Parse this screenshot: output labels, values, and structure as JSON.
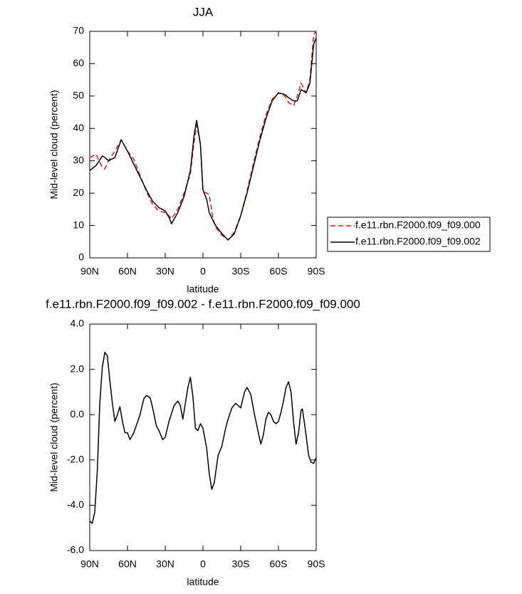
{
  "chart_data": [
    {
      "type": "line",
      "title": "JJA",
      "xlabel": "latitude",
      "ylabel": "Mid-level cloud (percent)",
      "x": [
        90,
        85,
        80,
        78,
        75,
        70,
        65,
        60,
        55,
        50,
        45,
        40,
        35,
        30,
        27,
        25,
        20,
        15,
        10,
        7,
        5,
        2,
        0,
        -3,
        -5,
        -8,
        -10,
        -15,
        -20,
        -25,
        -30,
        -35,
        -40,
        -45,
        -50,
        -55,
        -60,
        -65,
        -68,
        -72,
        -75,
        -78,
        -82,
        -85,
        -88,
        -90
      ],
      "series": [
        {
          "name": "f.e11.rbn.F2000.f09_f09.000",
          "color": "#e8141c",
          "line_style": "dashed",
          "values": [
            31,
            32,
            28,
            27.5,
            30,
            33,
            36.5,
            33,
            30.5,
            25.5,
            20.5,
            16.5,
            14.5,
            14,
            13,
            12,
            15,
            20,
            26,
            36,
            41,
            35,
            20.5,
            20,
            19.5,
            12,
            9.5,
            7,
            5.5,
            8,
            13,
            20.5,
            29,
            37,
            44,
            49,
            51,
            50,
            48,
            47,
            50,
            54,
            51,
            55,
            69,
            70
          ]
        },
        {
          "name": "f.e11.rbn.F2000.f09_f09.002",
          "color": "#000000",
          "line_style": "solid",
          "values": [
            27,
            28.5,
            31.5,
            31,
            30,
            31,
            36.5,
            33,
            29,
            25,
            21,
            17.5,
            15.5,
            14.5,
            12.5,
            10.5,
            14,
            19,
            27,
            38,
            42.5,
            35,
            21,
            18,
            14,
            11.5,
            10,
            7.5,
            5.5,
            7.5,
            13,
            20,
            28,
            36,
            43,
            48.5,
            51,
            50.5,
            49.5,
            48.5,
            48.5,
            52,
            51,
            54,
            66,
            68
          ]
        }
      ],
      "xlim": [
        90,
        -90
      ],
      "xticks": [
        {
          "value": 90,
          "label": "90N"
        },
        {
          "value": 60,
          "label": "60N"
        },
        {
          "value": 30,
          "label": "30N"
        },
        0,
        {
          "value": -30,
          "label": "30S"
        },
        {
          "value": -60,
          "label": "60S"
        },
        {
          "value": -90,
          "label": "90S"
        }
      ],
      "ylim": [
        0,
        70
      ],
      "yticks": [
        0,
        10,
        20,
        30,
        40,
        50,
        60,
        70
      ],
      "legend": "right",
      "grid": false
    },
    {
      "type": "line",
      "title": "f.e11.rbn.F2000.f09_f09.002 - f.e11.rbn.F2000.f09_f09.000",
      "xlabel": "latitude",
      "ylabel": "Mid-level cloud (percent)",
      "x": [
        90,
        88,
        86,
        84,
        82,
        80,
        78,
        76,
        74,
        72,
        70,
        68,
        66,
        64,
        62,
        60,
        58,
        55,
        50,
        47,
        45,
        42,
        40,
        37,
        35,
        32,
        30,
        27,
        23,
        20,
        18,
        16,
        14,
        12,
        10,
        8,
        6,
        4,
        2,
        0,
        -3,
        -5,
        -7,
        -9,
        -12,
        -15,
        -18,
        -20,
        -23,
        -26,
        -28,
        -30,
        -33,
        -35,
        -38,
        -41,
        -44,
        -46,
        -48,
        -50,
        -52,
        -54,
        -56,
        -58,
        -60,
        -62,
        -64,
        -66,
        -68,
        -70,
        -72,
        -74,
        -76,
        -78,
        -79,
        -81,
        -84,
        -86,
        -88,
        -90
      ],
      "values": [
        -4.7,
        -4.8,
        -4.3,
        -2.5,
        0.5,
        2.1,
        2.75,
        2.6,
        1.5,
        0.5,
        -0.3,
        0,
        0.35,
        -0.3,
        -0.8,
        -0.8,
        -1.1,
        -0.8,
        0,
        0.7,
        0.85,
        0.75,
        0.3,
        -0.5,
        -0.7,
        -1.1,
        -1,
        -0.3,
        0.4,
        0.6,
        0.4,
        -0.2,
        0.5,
        1.2,
        1.65,
        0.8,
        -0.6,
        -0.7,
        -0.4,
        -0.6,
        -1.5,
        -2.6,
        -3.3,
        -3,
        -1.8,
        -1.4,
        -0.6,
        -0.2,
        0.3,
        0.5,
        0.4,
        0.3,
        1,
        1.2,
        0.9,
        0,
        -0.8,
        -1.3,
        -0.9,
        -0.2,
        0.1,
        0,
        -0.3,
        -0.4,
        -0.3,
        0.1,
        0.6,
        1.2,
        1.45,
        1,
        -0.3,
        -1.3,
        -0.8,
        0.2,
        0.25,
        -0.5,
        -1.8,
        -2.1,
        -2.15,
        -1.9
      ],
      "color": "#000000",
      "xlim": [
        90,
        -90
      ],
      "xticks": [
        {
          "value": 90,
          "label": "90N"
        },
        {
          "value": 60,
          "label": "60N"
        },
        {
          "value": 30,
          "label": "30N"
        },
        0,
        {
          "value": -30,
          "label": "30S"
        },
        {
          "value": -60,
          "label": "60S"
        },
        {
          "value": -90,
          "label": "90S"
        }
      ],
      "ylim": [
        -6,
        4
      ],
      "yticks": [
        {
          "value": -6,
          "label": "-6.0"
        },
        {
          "value": -4,
          "label": "-4.0"
        },
        {
          "value": -2,
          "label": "-2.0"
        },
        {
          "value": 0,
          "label": "0.0"
        },
        {
          "value": 2,
          "label": "2.0"
        },
        {
          "value": 4,
          "label": "4.0"
        }
      ],
      "grid": false
    }
  ]
}
